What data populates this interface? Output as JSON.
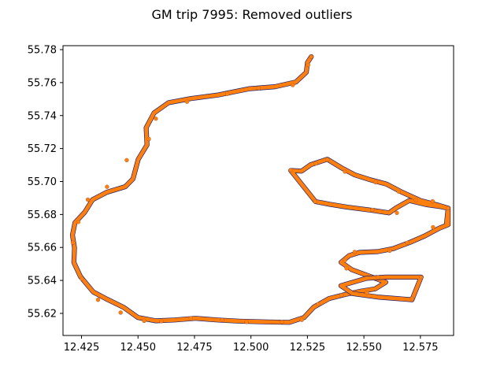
{
  "chart_data": {
    "type": "scatter",
    "title": "GM trip 7995: Removed outliers",
    "xlabel": "",
    "ylabel": "",
    "xlim": [
      12.4168,
      12.5897
    ],
    "ylim": [
      55.6066,
      55.7824
    ],
    "x_ticks": [
      "12.425",
      "12.450",
      "12.475",
      "12.500",
      "12.525",
      "12.550",
      "12.575"
    ],
    "y_ticks": [
      "55.62",
      "55.64",
      "55.66",
      "55.68",
      "55.70",
      "55.72",
      "55.74",
      "55.76",
      "55.78"
    ],
    "grid": false,
    "legend": "none",
    "series": [
      {
        "color": "#1f1f6e",
        "marker_radius": 2.6,
        "points": [
          [
            12.4527,
            55.6155
          ],
          [
            12.4603,
            55.6153
          ],
          [
            12.4734,
            55.617
          ],
          [
            12.4873,
            55.6159
          ],
          [
            12.4981,
            55.6148
          ],
          [
            12.5137,
            55.6148
          ],
          [
            12.5225,
            55.6161
          ],
          [
            12.5298,
            55.6256
          ],
          [
            12.5401,
            55.631
          ],
          [
            12.5513,
            55.6326
          ],
          [
            12.5713,
            55.629
          ],
          [
            12.5753,
            55.6418
          ],
          [
            12.5563,
            55.6419
          ],
          [
            12.5423,
            55.6473
          ],
          [
            12.5415,
            55.6521
          ],
          [
            12.5459,
            55.6573
          ],
          [
            12.5614,
            55.658
          ],
          [
            12.5692,
            55.6628
          ],
          [
            12.5806,
            55.6723
          ],
          [
            12.5873,
            55.6838
          ],
          [
            12.5804,
            55.688
          ],
          [
            12.5646,
            55.681
          ],
          [
            12.5537,
            55.6828
          ],
          [
            12.5285,
            55.6878
          ],
          [
            12.5176,
            55.7068
          ],
          [
            12.5287,
            55.711
          ],
          [
            12.5339,
            55.7132
          ],
          [
            12.5416,
            55.706
          ],
          [
            12.5552,
            55.6995
          ],
          [
            12.5654,
            55.6939
          ],
          [
            12.573,
            55.6888
          ],
          [
            12.4548,
            55.7258
          ],
          [
            12.445,
            55.713
          ],
          [
            12.4363,
            55.6968
          ],
          [
            12.4278,
            55.689
          ],
          [
            12.4236,
            55.6755
          ],
          [
            12.4212,
            55.663
          ],
          [
            12.4251,
            55.641
          ],
          [
            12.4323,
            55.6283
          ],
          [
            12.4423,
            55.6205
          ],
          [
            12.4579,
            55.7381
          ],
          [
            12.4717,
            55.7484
          ],
          [
            12.4895,
            55.7531
          ],
          [
            12.5034,
            55.7566
          ],
          [
            12.5185,
            55.7585
          ],
          [
            12.5253,
            55.7707
          ],
          [
            12.5267,
            55.7757
          ]
        ]
      },
      {
        "color": "#ff7f0e",
        "marker_radius": 2.5,
        "points": [
          [
            12.4527,
            55.6155
          ],
          [
            12.4603,
            55.6153
          ],
          [
            12.4734,
            55.617
          ],
          [
            12.4873,
            55.6159
          ],
          [
            12.4981,
            55.6148
          ],
          [
            12.5137,
            55.6148
          ],
          [
            12.5225,
            55.6161
          ],
          [
            12.5298,
            55.6256
          ],
          [
            12.5401,
            55.631
          ],
          [
            12.5513,
            55.6326
          ],
          [
            12.5713,
            55.629
          ],
          [
            12.5753,
            55.6418
          ],
          [
            12.5563,
            55.6419
          ],
          [
            12.5423,
            55.6473
          ],
          [
            12.5415,
            55.6521
          ],
          [
            12.5459,
            55.6573
          ],
          [
            12.5614,
            55.658
          ],
          [
            12.5692,
            55.6628
          ],
          [
            12.5806,
            55.6723
          ],
          [
            12.5873,
            55.6838
          ],
          [
            12.5804,
            55.688
          ],
          [
            12.5646,
            55.681
          ],
          [
            12.5537,
            55.6828
          ],
          [
            12.5285,
            55.6878
          ],
          [
            12.5176,
            55.7068
          ],
          [
            12.5287,
            55.711
          ],
          [
            12.5339,
            55.7132
          ],
          [
            12.5416,
            55.706
          ],
          [
            12.5552,
            55.6995
          ],
          [
            12.5654,
            55.6939
          ],
          [
            12.573,
            55.6888
          ],
          [
            12.4548,
            55.7258
          ],
          [
            12.445,
            55.713
          ],
          [
            12.4363,
            55.6968
          ],
          [
            12.4278,
            55.689
          ],
          [
            12.4236,
            55.6755
          ],
          [
            12.4212,
            55.663
          ],
          [
            12.4251,
            55.641
          ],
          [
            12.4323,
            55.6283
          ],
          [
            12.4423,
            55.6205
          ],
          [
            12.4579,
            55.7381
          ],
          [
            12.4717,
            55.7484
          ],
          [
            12.4895,
            55.7531
          ],
          [
            12.5034,
            55.7566
          ],
          [
            12.5185,
            55.7585
          ],
          [
            12.5253,
            55.7707
          ],
          [
            12.5267,
            55.7757
          ]
        ]
      }
    ],
    "route": [
      [
        12.5267,
        55.7757
      ],
      [
        12.525,
        55.7722
      ],
      [
        12.5245,
        55.7663
      ],
      [
        12.5199,
        55.7604
      ],
      [
        12.5106,
        55.7575
      ],
      [
        12.4994,
        55.7563
      ],
      [
        12.4855,
        55.7525
      ],
      [
        12.4733,
        55.7503
      ],
      [
        12.4635,
        55.7478
      ],
      [
        12.4571,
        55.7416
      ],
      [
        12.4536,
        55.7326
      ],
      [
        12.454,
        55.7222
      ],
      [
        12.4501,
        55.7134
      ],
      [
        12.4478,
        55.7016
      ],
      [
        12.4444,
        55.6969
      ],
      [
        12.4362,
        55.6935
      ],
      [
        12.4299,
        55.689
      ],
      [
        12.4264,
        55.6813
      ],
      [
        12.4221,
        55.675
      ],
      [
        12.421,
        55.6675
      ],
      [
        12.4219,
        55.6597
      ],
      [
        12.4216,
        55.6509
      ],
      [
        12.4245,
        55.6424
      ],
      [
        12.4302,
        55.633
      ],
      [
        12.4361,
        55.6287
      ],
      [
        12.4437,
        55.6236
      ],
      [
        12.45,
        55.6175
      ],
      [
        12.4579,
        55.6155
      ],
      [
        12.4662,
        55.616
      ],
      [
        12.4755,
        55.617
      ],
      [
        12.4851,
        55.616
      ],
      [
        12.4947,
        55.6153
      ],
      [
        12.5072,
        55.6148
      ],
      [
        12.517,
        55.6146
      ],
      [
        12.5235,
        55.6175
      ],
      [
        12.5278,
        55.6238
      ],
      [
        12.5346,
        55.629
      ],
      [
        12.5418,
        55.6315
      ],
      [
        12.5491,
        55.6336
      ],
      [
        12.555,
        55.6349
      ],
      [
        12.5597,
        55.6389
      ],
      [
        12.5532,
        55.6422
      ],
      [
        12.5447,
        55.6465
      ],
      [
        12.5399,
        55.651
      ],
      [
        12.5434,
        55.655
      ],
      [
        12.5481,
        55.657
      ],
      [
        12.5561,
        55.6575
      ],
      [
        12.563,
        55.6593
      ],
      [
        12.5703,
        55.663
      ],
      [
        12.5769,
        55.667
      ],
      [
        12.5833,
        55.6716
      ],
      [
        12.5873,
        55.6738
      ],
      [
        12.5873,
        55.6838
      ],
      [
        12.5838,
        55.6848
      ],
      [
        12.5775,
        55.686
      ],
      [
        12.5701,
        55.6885
      ],
      [
        12.5645,
        55.6842
      ],
      [
        12.5611,
        55.681
      ],
      [
        12.5536,
        55.6825
      ],
      [
        12.5424,
        55.6845
      ],
      [
        12.5349,
        55.6862
      ],
      [
        12.5286,
        55.6878
      ],
      [
        12.5176,
        55.7067
      ],
      [
        12.5224,
        55.7063
      ],
      [
        12.5265,
        55.7102
      ],
      [
        12.5338,
        55.7135
      ],
      [
        12.5398,
        55.7085
      ],
      [
        12.546,
        55.704
      ],
      [
        12.553,
        55.701
      ],
      [
        12.56,
        55.6984
      ],
      [
        12.5669,
        55.6935
      ],
      [
        12.575,
        55.6885
      ],
      [
        12.5832,
        55.6855
      ],
      [
        12.5873,
        55.6838
      ],
      [
        12.5869,
        55.679
      ],
      [
        12.5865,
        55.6735
      ]
    ],
    "loop": [
      [
        12.5398,
        55.6368
      ],
      [
        12.5511,
        55.6413
      ],
      [
        12.5597,
        55.642
      ],
      [
        12.5753,
        55.642
      ],
      [
        12.5713,
        55.6283
      ],
      [
        12.5568,
        55.6298
      ],
      [
        12.545,
        55.632
      ],
      [
        12.5398,
        55.6368
      ]
    ]
  }
}
